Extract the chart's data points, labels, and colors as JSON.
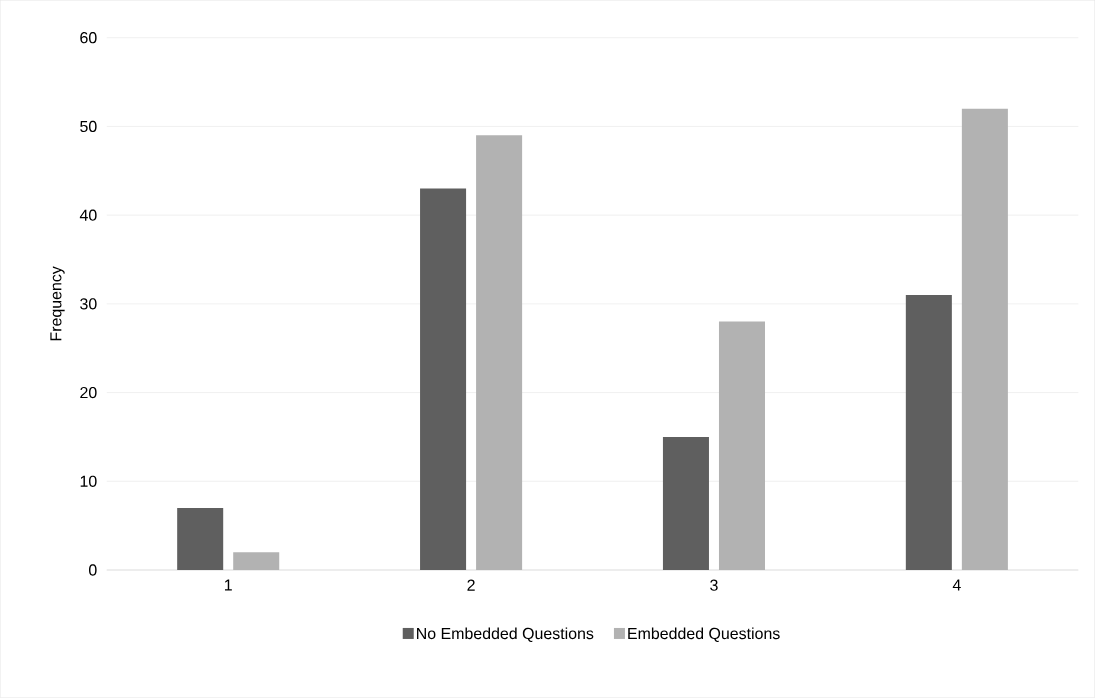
{
  "chart_data": {
    "type": "bar",
    "ylabel": "Frequency",
    "categories": [
      "1",
      "2",
      "3",
      "4"
    ],
    "series": [
      {
        "name": "No Embedded Questions",
        "color": "#5f5f5f",
        "values": [
          7,
          43,
          15,
          31
        ]
      },
      {
        "name": "Embedded Questions",
        "color": "#b2b2b2",
        "values": [
          2,
          49,
          28,
          52
        ]
      }
    ],
    "ylim": [
      0,
      60
    ],
    "yticks": [
      0,
      10,
      20,
      30,
      40,
      50,
      60
    ],
    "grid": "y",
    "legend": "bottom"
  }
}
